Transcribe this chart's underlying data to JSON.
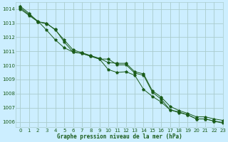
{
  "background_color": "#cceeff",
  "grid_color": "#aacccc",
  "line_color": "#1a5c1a",
  "text_color": "#1a5c1a",
  "xlabel": "Graphe pression niveau de la mer (hPa)",
  "xlim": [
    -0.5,
    23
  ],
  "ylim": [
    1005.6,
    1014.5
  ],
  "yticks": [
    1006,
    1007,
    1008,
    1009,
    1010,
    1011,
    1012,
    1013,
    1014
  ],
  "xticks": [
    0,
    1,
    2,
    3,
    4,
    5,
    6,
    7,
    8,
    9,
    10,
    11,
    12,
    13,
    14,
    15,
    16,
    17,
    18,
    19,
    20,
    21,
    22,
    23
  ],
  "series": [
    [
      1014.2,
      1013.7,
      1013.1,
      1013.0,
      1012.5,
      1011.8,
      1011.1,
      1010.9,
      1010.7,
      1010.5,
      1010.2,
      1010.15,
      1010.15,
      1009.55,
      1009.4,
      1008.2,
      1007.75,
      1007.1,
      1006.8,
      1006.6,
      1006.35,
      1006.35,
      1006.2,
      1006.1
    ],
    [
      1014.0,
      1013.55,
      1013.1,
      1012.95,
      1012.55,
      1011.65,
      1010.95,
      1010.85,
      1010.65,
      1010.45,
      1010.45,
      1010.05,
      1010.05,
      1009.45,
      1009.3,
      1008.1,
      1007.6,
      1006.85,
      1006.7,
      1006.5,
      1006.2,
      1006.2,
      1006.05,
      1005.9
    ],
    [
      1014.1,
      1013.6,
      1013.15,
      1012.5,
      1011.8,
      1011.25,
      1010.95,
      1010.85,
      1010.65,
      1010.45,
      1009.7,
      1009.5,
      1009.55,
      1009.3,
      1008.3,
      1007.8,
      1007.4,
      1006.85,
      1006.65,
      1006.5,
      1006.2,
      1006.2,
      1006.05,
      1005.95
    ]
  ]
}
